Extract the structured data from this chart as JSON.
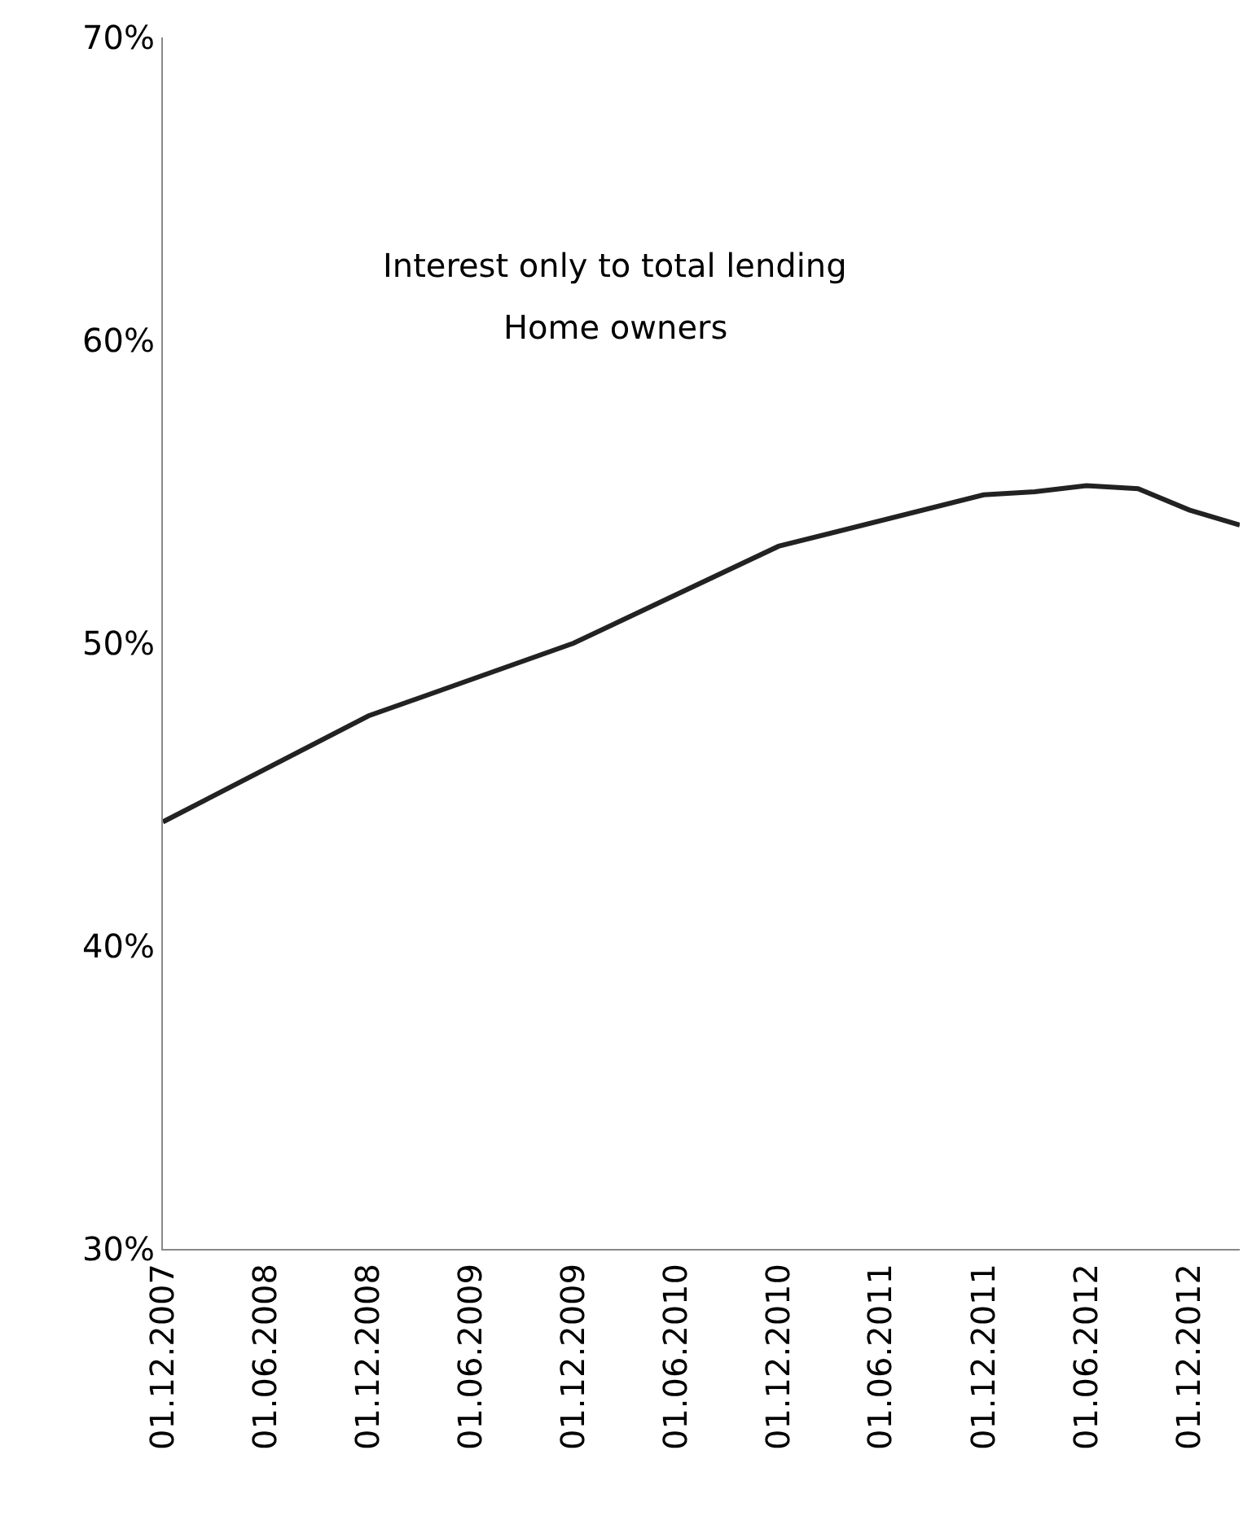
{
  "chart_data": {
    "type": "line",
    "title": "Interest only to total lending",
    "subtitle": "Home owners",
    "x": [
      "2007-12-01",
      "2008-12-01",
      "2009-12-01",
      "2010-12-01",
      "2011-12-01",
      "2012-03-01",
      "2012-06-01",
      "2012-09-01",
      "2012-12-01",
      "2013-03-01"
    ],
    "series": [
      {
        "color": "#222222",
        "values": [
          44.1,
          47.6,
          50.0,
          53.2,
          54.9,
          55.0,
          55.2,
          55.1,
          54.4,
          53.9
        ]
      }
    ],
    "xlim": [
      "2007-12-01",
      "2013-03-01"
    ],
    "xticks": [
      {
        "value": "2007-12-01",
        "label": "01.12.2007"
      },
      {
        "value": "2008-06-01",
        "label": "01.06.2008"
      },
      {
        "value": "2008-12-01",
        "label": "01.12.2008"
      },
      {
        "value": "2009-06-01",
        "label": "01.06.2009"
      },
      {
        "value": "2009-12-01",
        "label": "01.12.2009"
      },
      {
        "value": "2010-06-01",
        "label": "01.06.2010"
      },
      {
        "value": "2010-12-01",
        "label": "01.12.2010"
      },
      {
        "value": "2011-06-01",
        "label": "01.06.2011"
      },
      {
        "value": "2011-12-01",
        "label": "01.12.2011"
      },
      {
        "value": "2012-06-01",
        "label": "01.06.2012"
      },
      {
        "value": "2012-12-01",
        "label": "01.12.2012"
      }
    ],
    "ylim": [
      30,
      70
    ],
    "yticks": [
      {
        "value": 30,
        "label": "30%"
      },
      {
        "value": 40,
        "label": "40%"
      },
      {
        "value": 50,
        "label": "50%"
      },
      {
        "value": 60,
        "label": "60%"
      },
      {
        "value": 70,
        "label": "70%"
      }
    ],
    "marker": "none",
    "line_style": "solid"
  }
}
